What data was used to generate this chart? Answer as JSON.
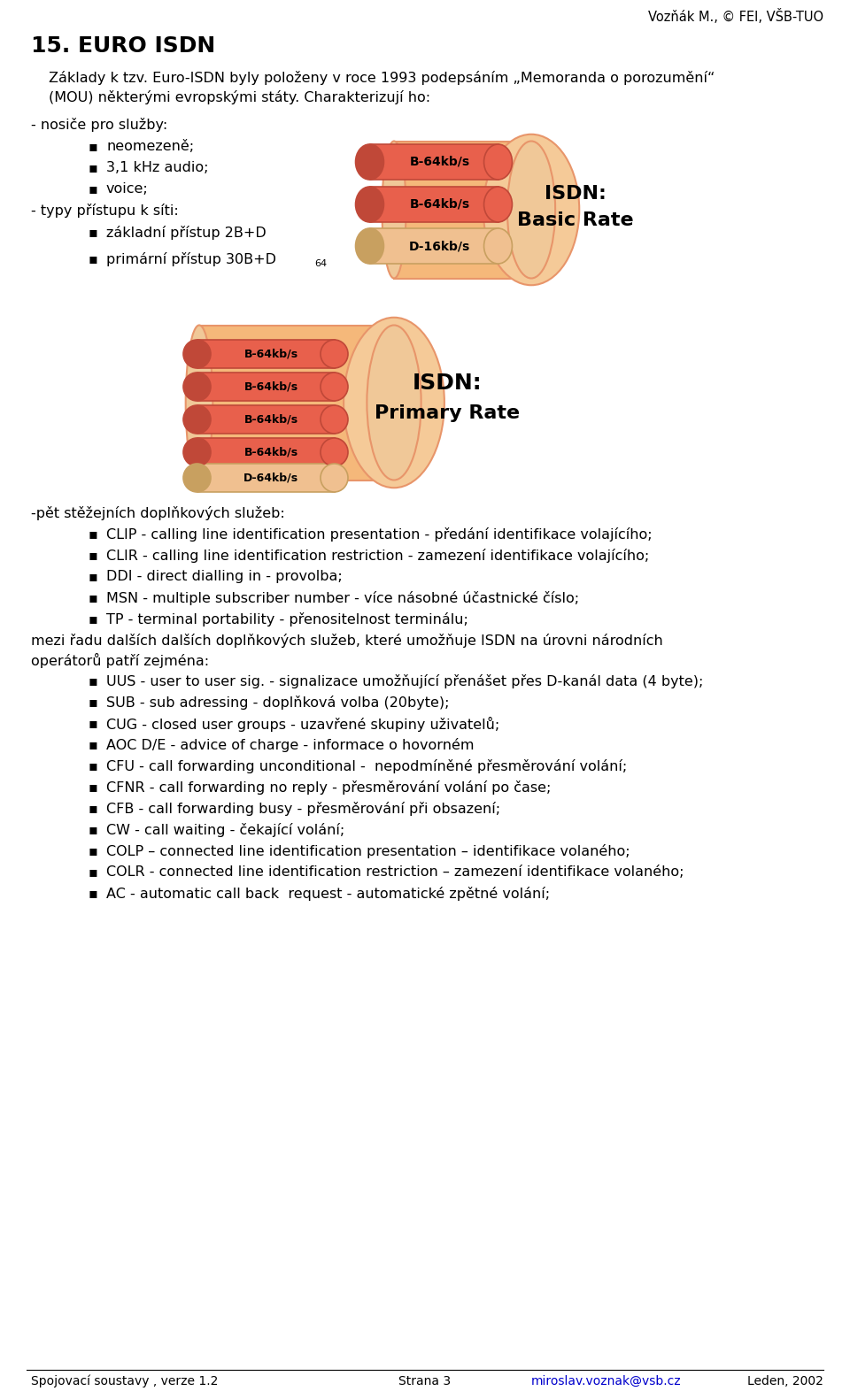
{
  "header_right": "Vozňák M., © FEI, VŠB-TUO",
  "title": "15. EURO ISDN",
  "para1": "Základy k tzv. Euro-ISDN byly položeny v roce 1993 podepsáním „Memoranda o porozumění“",
  "para2": "(MOU) některými evropskými státy. Charakterizují ho:",
  "dash1": "- nosiče pro služby:",
  "bullet1": "neomezeně;",
  "bullet2": "3,1 kHz audio;",
  "bullet3": "voice;",
  "dash2": "- typy přístupu k síti:",
  "bullet4": "základní přístup 2B+D",
  "bullet5": "primární přístup 30B+D",
  "bullet5_sub": "64",
  "section2_intro": "-pět stěžejních doplňkových služeb:",
  "s2b1": "CLIP - calling line identification presentation - předání identifikace volajícího;",
  "s2b2": "CLIR - calling line identification restriction - zamezení identifikace volajícího;",
  "s2b3": "DDI - direct dialling in - provolba;",
  "s2b4": "MSN - multiple subscriber number - více násobné účastnické číslo;",
  "s2b5": "TP - terminal portability - přenositelnost terminálu;",
  "para3a": "mezi řadu dalších dalších doplňkových služeb, které umožňuje ISDN na úrovni národních",
  "para3b": "operátorů patří zejména:",
  "s3b1": "UUS - user to user sig. - signalizace umožňující přenášet přes D-kanál data (4 byte);",
  "s3b2": "SUB - sub adressing - doplňková volba (20byte);",
  "s3b3": "CUG - closed user groups - uzavřené skupiny uživatelů;",
  "s3b4": "AOC D/E - advice of charge - informace o hovorném",
  "s3b5": "CFU - call forwarding unconditional -  nepodmíněné přesměrování volání;",
  "s3b6": "CFNR - call forwarding no reply - přesměrování volání po čase;",
  "s3b7": "CFB - call forwarding busy - přesměrování při obsazení;",
  "s3b8": "CW - call waiting - čekající volání;",
  "s3b9": "COLP – connected line identification presentation – identifikace volaného;",
  "s3b10": "COLR - connected line identification restriction – zamezení identifikace volaného;",
  "s3b11": "AC - automatic call back  request - automatické zpětné volání;",
  "footer_left": "Spojovací soustavy , verze 1.2",
  "footer_center": "Strana 3",
  "footer_email": "miroslav.voznak@vsb.cz",
  "footer_right": "Leden, 2002",
  "bg_color": "#ffffff",
  "text_color": "#000000",
  "title_color": "#000000",
  "email_color": "#0000cc",
  "body_orange": "#F5B87A",
  "body_orange_dark": "#E8956A",
  "tube_red": "#E8604C",
  "tube_d": "#F0C090",
  "tube_outline": "#C87050"
}
